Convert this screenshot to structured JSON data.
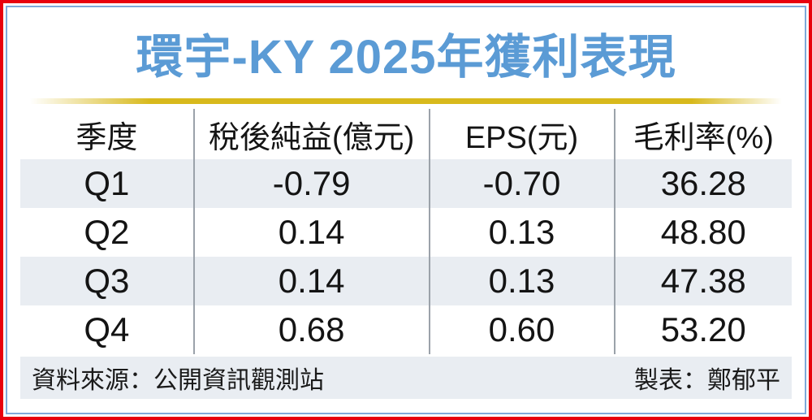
{
  "title": "環宇-KY 2025年獲利表現",
  "table": {
    "headers": [
      "季度",
      "稅後純益(億元)",
      "EPS(元)",
      "毛利率(%)"
    ],
    "rows": [
      {
        "quarter": "Q1",
        "net_profit": "-0.79",
        "eps": "-0.70",
        "gross_margin": "36.28"
      },
      {
        "quarter": "Q2",
        "net_profit": "0.14",
        "eps": "0.13",
        "gross_margin": "48.80"
      },
      {
        "quarter": "Q3",
        "net_profit": "0.14",
        "eps": "0.13",
        "gross_margin": "47.38"
      },
      {
        "quarter": "Q4",
        "net_profit": "0.68",
        "eps": "0.60",
        "gross_margin": "53.20"
      }
    ]
  },
  "footer": {
    "source": "資料來源：公開資訊觀測站",
    "credit": "製表：鄭郁平"
  },
  "colors": {
    "title_blue": "#5B9BD5",
    "gold_line": "#D8B91C",
    "row_alt_bg": "#E9EDF2",
    "outer_border_red": "#E8000D",
    "inner_border_blue": "#7FA8D9",
    "divider_gray": "#9BA2AA",
    "text": "#141414"
  },
  "chart_data": {
    "type": "table",
    "title": "環宇-KY 2025年獲利表現",
    "columns": [
      "季度",
      "稅後純益(億元)",
      "EPS(元)",
      "毛利率(%)"
    ],
    "rows": [
      [
        "Q1",
        -0.79,
        -0.7,
        36.28
      ],
      [
        "Q2",
        0.14,
        0.13,
        48.8
      ],
      [
        "Q3",
        0.14,
        0.13,
        47.38
      ],
      [
        "Q4",
        0.68,
        0.6,
        53.2
      ]
    ],
    "source": "公開資訊觀測站",
    "credited_to": "鄭郁平"
  }
}
